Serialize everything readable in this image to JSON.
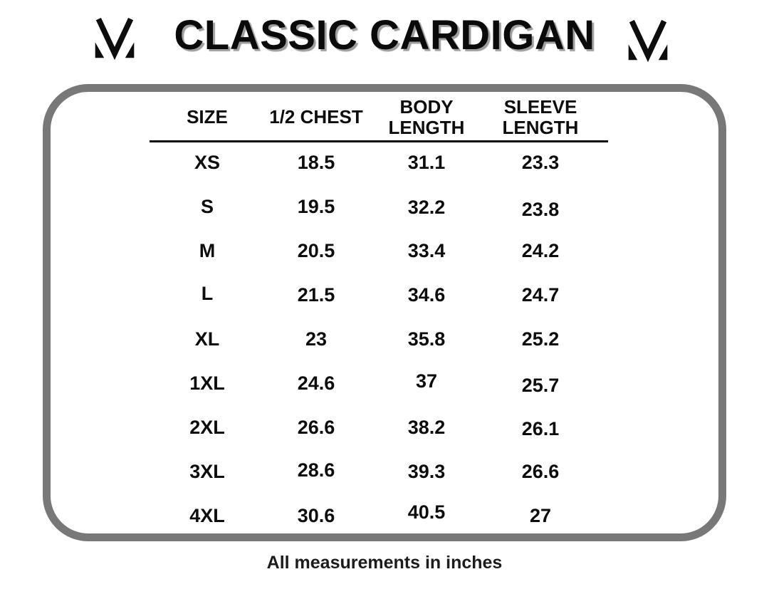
{
  "header": {
    "title": "CLASSIC CARDIGAN"
  },
  "footer": {
    "note": "All measurements in inches"
  },
  "colors": {
    "frame_border_gray": "#787878",
    "title_shadow_gray": "#9d9d9d",
    "text_black": "#0d0d0d",
    "background": "#ffffff"
  },
  "icons": {
    "logo": "m-monogram-icon"
  },
  "chart_data": {
    "type": "table",
    "title": "CLASSIC CARDIGAN",
    "columns": [
      "SIZE",
      "1/2 CHEST",
      "BODY LENGTH",
      "SLEEVE LENGTH"
    ],
    "rows": [
      [
        "XS",
        "18.5",
        "31.1",
        "23.3"
      ],
      [
        "S",
        "19.5",
        "32.2",
        "23.8"
      ],
      [
        "M",
        "20.5",
        "33.4",
        "24.2"
      ],
      [
        "L",
        "21.5",
        "34.6",
        "24.7"
      ],
      [
        "XL",
        "23",
        "35.8",
        "25.2"
      ],
      [
        "1XL",
        "24.6",
        "37",
        "25.7"
      ],
      [
        "2XL",
        "26.6",
        "38.2",
        "26.1"
      ],
      [
        "3XL",
        "28.6",
        "39.3",
        "26.6"
      ],
      [
        "4XL",
        "30.6",
        "40.5",
        "27"
      ]
    ],
    "units": "inches",
    "footnote": "All measurements in inches"
  }
}
